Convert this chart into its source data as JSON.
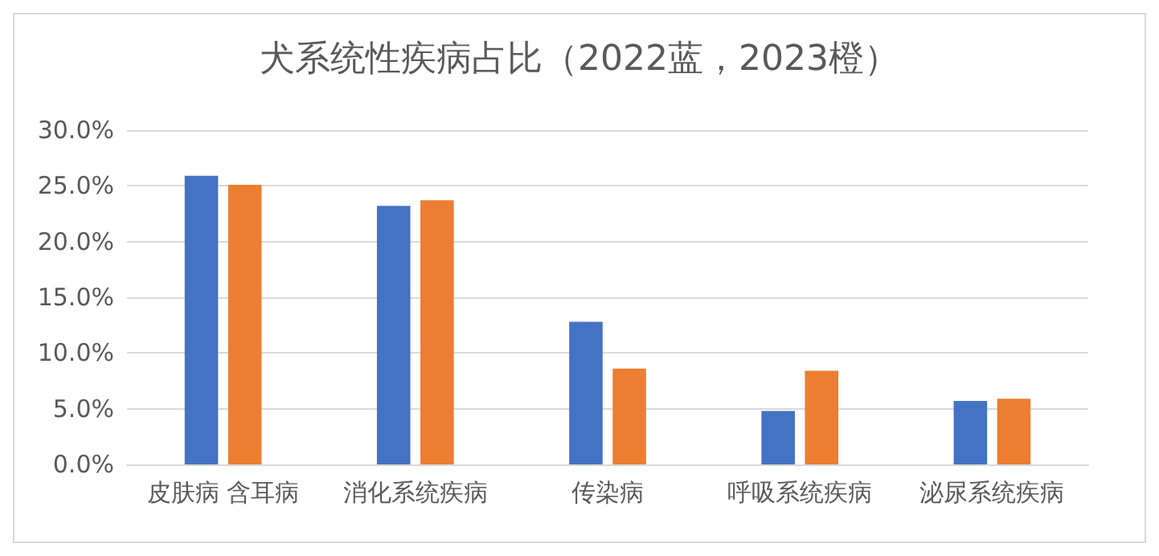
{
  "chart_data": {
    "type": "bar",
    "title": "犬系统性疾病占比（2022蓝，2023橙）",
    "categories": [
      "皮肤病 含耳病",
      "消化系统疾病",
      "传染病",
      "呼吸系统疾病",
      "泌尿系统疾病"
    ],
    "series": [
      {
        "color": "#4472c4",
        "values": [
          25.9,
          23.2,
          12.8,
          4.8,
          5.7
        ]
      },
      {
        "color": "#ed7d31",
        "values": [
          25.1,
          23.7,
          8.6,
          8.4,
          5.9
        ]
      }
    ],
    "ylim": [
      0,
      30
    ],
    "yticks": [
      {
        "value": 0,
        "label": "0.0%"
      },
      {
        "value": 5,
        "label": "5.0%"
      },
      {
        "value": 10,
        "label": "10.0%"
      },
      {
        "value": 15,
        "label": "15.0%"
      },
      {
        "value": 20,
        "label": "20.0%"
      },
      {
        "value": 25,
        "label": "25.0%"
      },
      {
        "value": 30,
        "label": "30.0%"
      }
    ],
    "grid": "y"
  }
}
